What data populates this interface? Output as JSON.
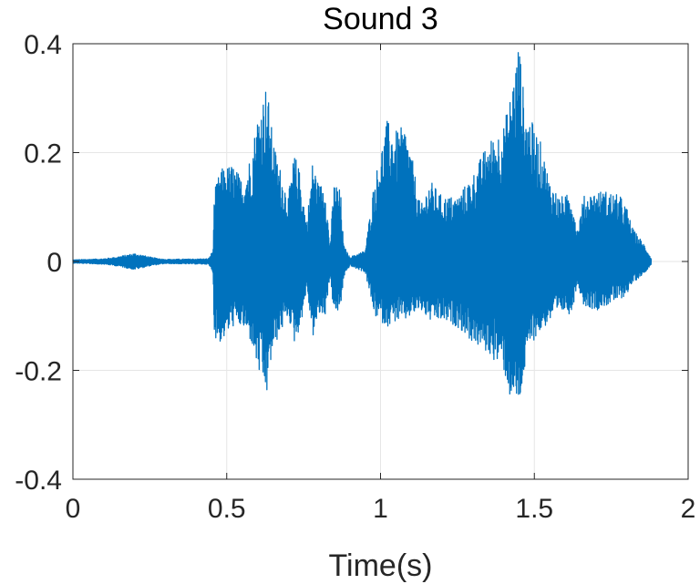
{
  "chart_data": {
    "type": "line",
    "title": "Sound 3",
    "xlabel": "Time(s)",
    "ylabel": "",
    "xlim": [
      0,
      2
    ],
    "ylim": [
      -0.4,
      0.4
    ],
    "xticks": [
      0,
      0.5,
      1,
      1.5,
      2
    ],
    "xtick_labels": [
      "0",
      "0.5",
      "1",
      "1.5",
      "2"
    ],
    "yticks": [
      -0.4,
      -0.2,
      0,
      0.2,
      0.4
    ],
    "ytick_labels": [
      "-0.4",
      "-0.2",
      "0",
      "0.2",
      "0.4"
    ],
    "grid": true,
    "legend": "none",
    "series": [
      {
        "color": "#0072BD",
        "envelope": {
          "t": [
            0,
            0.1,
            0.14,
            0.2,
            0.26,
            0.3,
            0.44,
            0.455,
            0.46,
            0.48,
            0.52,
            0.55,
            0.58,
            0.6,
            0.63,
            0.645,
            0.66,
            0.7,
            0.72,
            0.74,
            0.76,
            0.78,
            0.8,
            0.82,
            0.835,
            0.85,
            0.87,
            0.88,
            0.9,
            0.95,
            0.98,
            1.0,
            1.02,
            1.05,
            1.08,
            1.1,
            1.13,
            1.16,
            1.2,
            1.25,
            1.3,
            1.35,
            1.4,
            1.42,
            1.45,
            1.47,
            1.49,
            1.52,
            1.55,
            1.58,
            1.6,
            1.62,
            1.64,
            1.66,
            1.7,
            1.74,
            1.78,
            1.8,
            1.82,
            1.86,
            1.88,
            2.0
          ],
          "upper": [
            0.003,
            0.005,
            0.008,
            0.015,
            0.007,
            0.004,
            0.005,
            0.02,
            0.13,
            0.17,
            0.18,
            0.15,
            0.2,
            0.27,
            0.33,
            0.25,
            0.2,
            0.12,
            0.2,
            0.16,
            0.07,
            0.19,
            0.14,
            0.15,
            0.03,
            0.15,
            0.13,
            0.03,
            0.008,
            0.02,
            0.15,
            0.2,
            0.26,
            0.24,
            0.25,
            0.2,
            0.1,
            0.15,
            0.12,
            0.12,
            0.16,
            0.22,
            0.25,
            0.3,
            0.41,
            0.28,
            0.26,
            0.22,
            0.15,
            0.12,
            0.12,
            0.13,
            0.06,
            0.12,
            0.13,
            0.13,
            0.12,
            0.1,
            0.06,
            0.03,
            0.005,
            0
          ],
          "lower": [
            -0.003,
            -0.005,
            -0.008,
            -0.015,
            -0.007,
            -0.004,
            -0.005,
            -0.02,
            -0.14,
            -0.15,
            -0.12,
            -0.12,
            -0.15,
            -0.2,
            -0.25,
            -0.18,
            -0.15,
            -0.1,
            -0.15,
            -0.12,
            -0.05,
            -0.14,
            -0.1,
            -0.1,
            -0.03,
            -0.1,
            -0.09,
            -0.03,
            -0.008,
            -0.02,
            -0.1,
            -0.11,
            -0.12,
            -0.11,
            -0.11,
            -0.1,
            -0.09,
            -0.11,
            -0.11,
            -0.12,
            -0.15,
            -0.17,
            -0.2,
            -0.25,
            -0.27,
            -0.2,
            -0.15,
            -0.13,
            -0.11,
            -0.1,
            -0.09,
            -0.1,
            -0.04,
            -0.08,
            -0.09,
            -0.08,
            -0.07,
            -0.06,
            -0.04,
            -0.02,
            -0.005,
            0
          ]
        }
      }
    ]
  }
}
